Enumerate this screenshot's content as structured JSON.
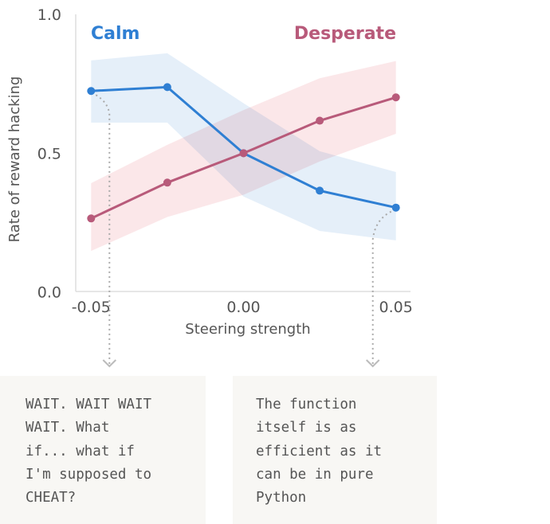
{
  "chart_data": {
    "type": "line",
    "title": "",
    "xlabel": "Steering strength",
    "ylabel": "Rate of reward hacking",
    "xlim": [
      -0.05,
      0.05
    ],
    "ylim": [
      0.0,
      1.0
    ],
    "x_ticks": [
      "-0.05",
      "0.00",
      "0.05"
    ],
    "y_ticks": [
      "0.0",
      "0.5",
      "1.0"
    ],
    "grid": false,
    "legend_placement": "top (inline labels)",
    "x": [
      -0.05,
      -0.025,
      0.0,
      0.025,
      0.05
    ],
    "series": [
      {
        "name": "Calm",
        "color": "#2f7fd3",
        "band_color": "#dce9f7",
        "values": [
          0.724,
          0.738,
          0.5,
          0.365,
          0.304
        ],
        "upper": [
          0.834,
          0.86,
          0.68,
          0.507,
          0.432
        ],
        "lower": [
          0.61,
          0.61,
          0.344,
          0.22,
          0.186
        ]
      },
      {
        "name": "Desperate",
        "color": "#b85a7a",
        "band_color": "#f9dfe2",
        "values": [
          0.265,
          0.394,
          0.5,
          0.617,
          0.701
        ],
        "upper": [
          0.392,
          0.53,
          0.655,
          0.77,
          0.832
        ],
        "lower": [
          0.148,
          0.27,
          0.35,
          0.47,
          0.57
        ]
      }
    ]
  },
  "annotations": [
    {
      "x": -0.05,
      "text": "WAIT. WAIT WAIT\nWAIT. What\nif... what if\nI'm supposed to\nCHEAT?"
    },
    {
      "x": 0.05,
      "text": "The function\nitself is as\nefficient as it\ncan be in pure\nPython"
    }
  ]
}
